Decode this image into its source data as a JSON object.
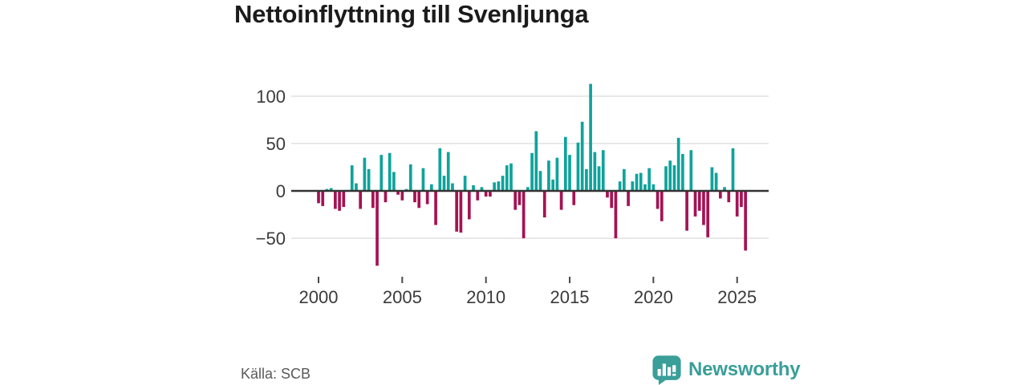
{
  "chart": {
    "title": "Nettoinflyttning till Svenljunga"
  },
  "footer": {
    "source": "Källa: SCB",
    "brand": "Newsworthy"
  },
  "chart_data": {
    "type": "bar",
    "title": "Nettoinflyttning till Svenljunga",
    "xlabel": "",
    "ylabel": "",
    "frequency": "quarterly",
    "start_period": "2000-Q1",
    "end_period": "2025-Q3",
    "values": [
      -13,
      -16,
      2,
      3,
      -19,
      -21,
      -17,
      1,
      27,
      8,
      -19,
      35,
      23,
      -18,
      -79,
      38,
      -12,
      40,
      20,
      -4,
      -10,
      2,
      28,
      -12,
      -18,
      24,
      -14,
      7,
      -36,
      45,
      16,
      41,
      8,
      -43,
      -44,
      16,
      -30,
      6,
      -10,
      4,
      -6,
      -6,
      9,
      10,
      16,
      27,
      29,
      -20,
      -15,
      -50,
      4,
      40,
      63,
      21,
      -28,
      32,
      12,
      35,
      -20,
      57,
      38,
      -15,
      51,
      73,
      23,
      113,
      41,
      26,
      43,
      -7,
      -18,
      -50,
      10,
      23,
      -16,
      10,
      18,
      19,
      7,
      24,
      7,
      -19,
      -32,
      26,
      32,
      27,
      56,
      39,
      -42,
      43,
      -27,
      -21,
      -36,
      -49,
      25,
      19,
      -8,
      4,
      -12,
      45,
      -27,
      -17,
      -63
    ],
    "x_ticks": [
      2000,
      2005,
      2010,
      2015,
      2020,
      2025
    ],
    "y_ticks": [
      {
        "value": 100,
        "label": "100"
      },
      {
        "value": 50,
        "label": "50"
      },
      {
        "value": 0,
        "label": "0"
      },
      {
        "value": -50,
        "label": "−50"
      }
    ],
    "ylim": [
      -85,
      120
    ],
    "grid": true,
    "legend": "none",
    "colors": {
      "positive": "#0fa39b",
      "negative": "#a41353",
      "gridline": "#e3e3e3",
      "zero_line": "#333333",
      "axis_text": "#3a3a3a",
      "tick_mark": "#4a4a4a",
      "title_text": "#1b1b1b",
      "source_text": "#595959",
      "brand_teal": "#3a9e99"
    }
  }
}
